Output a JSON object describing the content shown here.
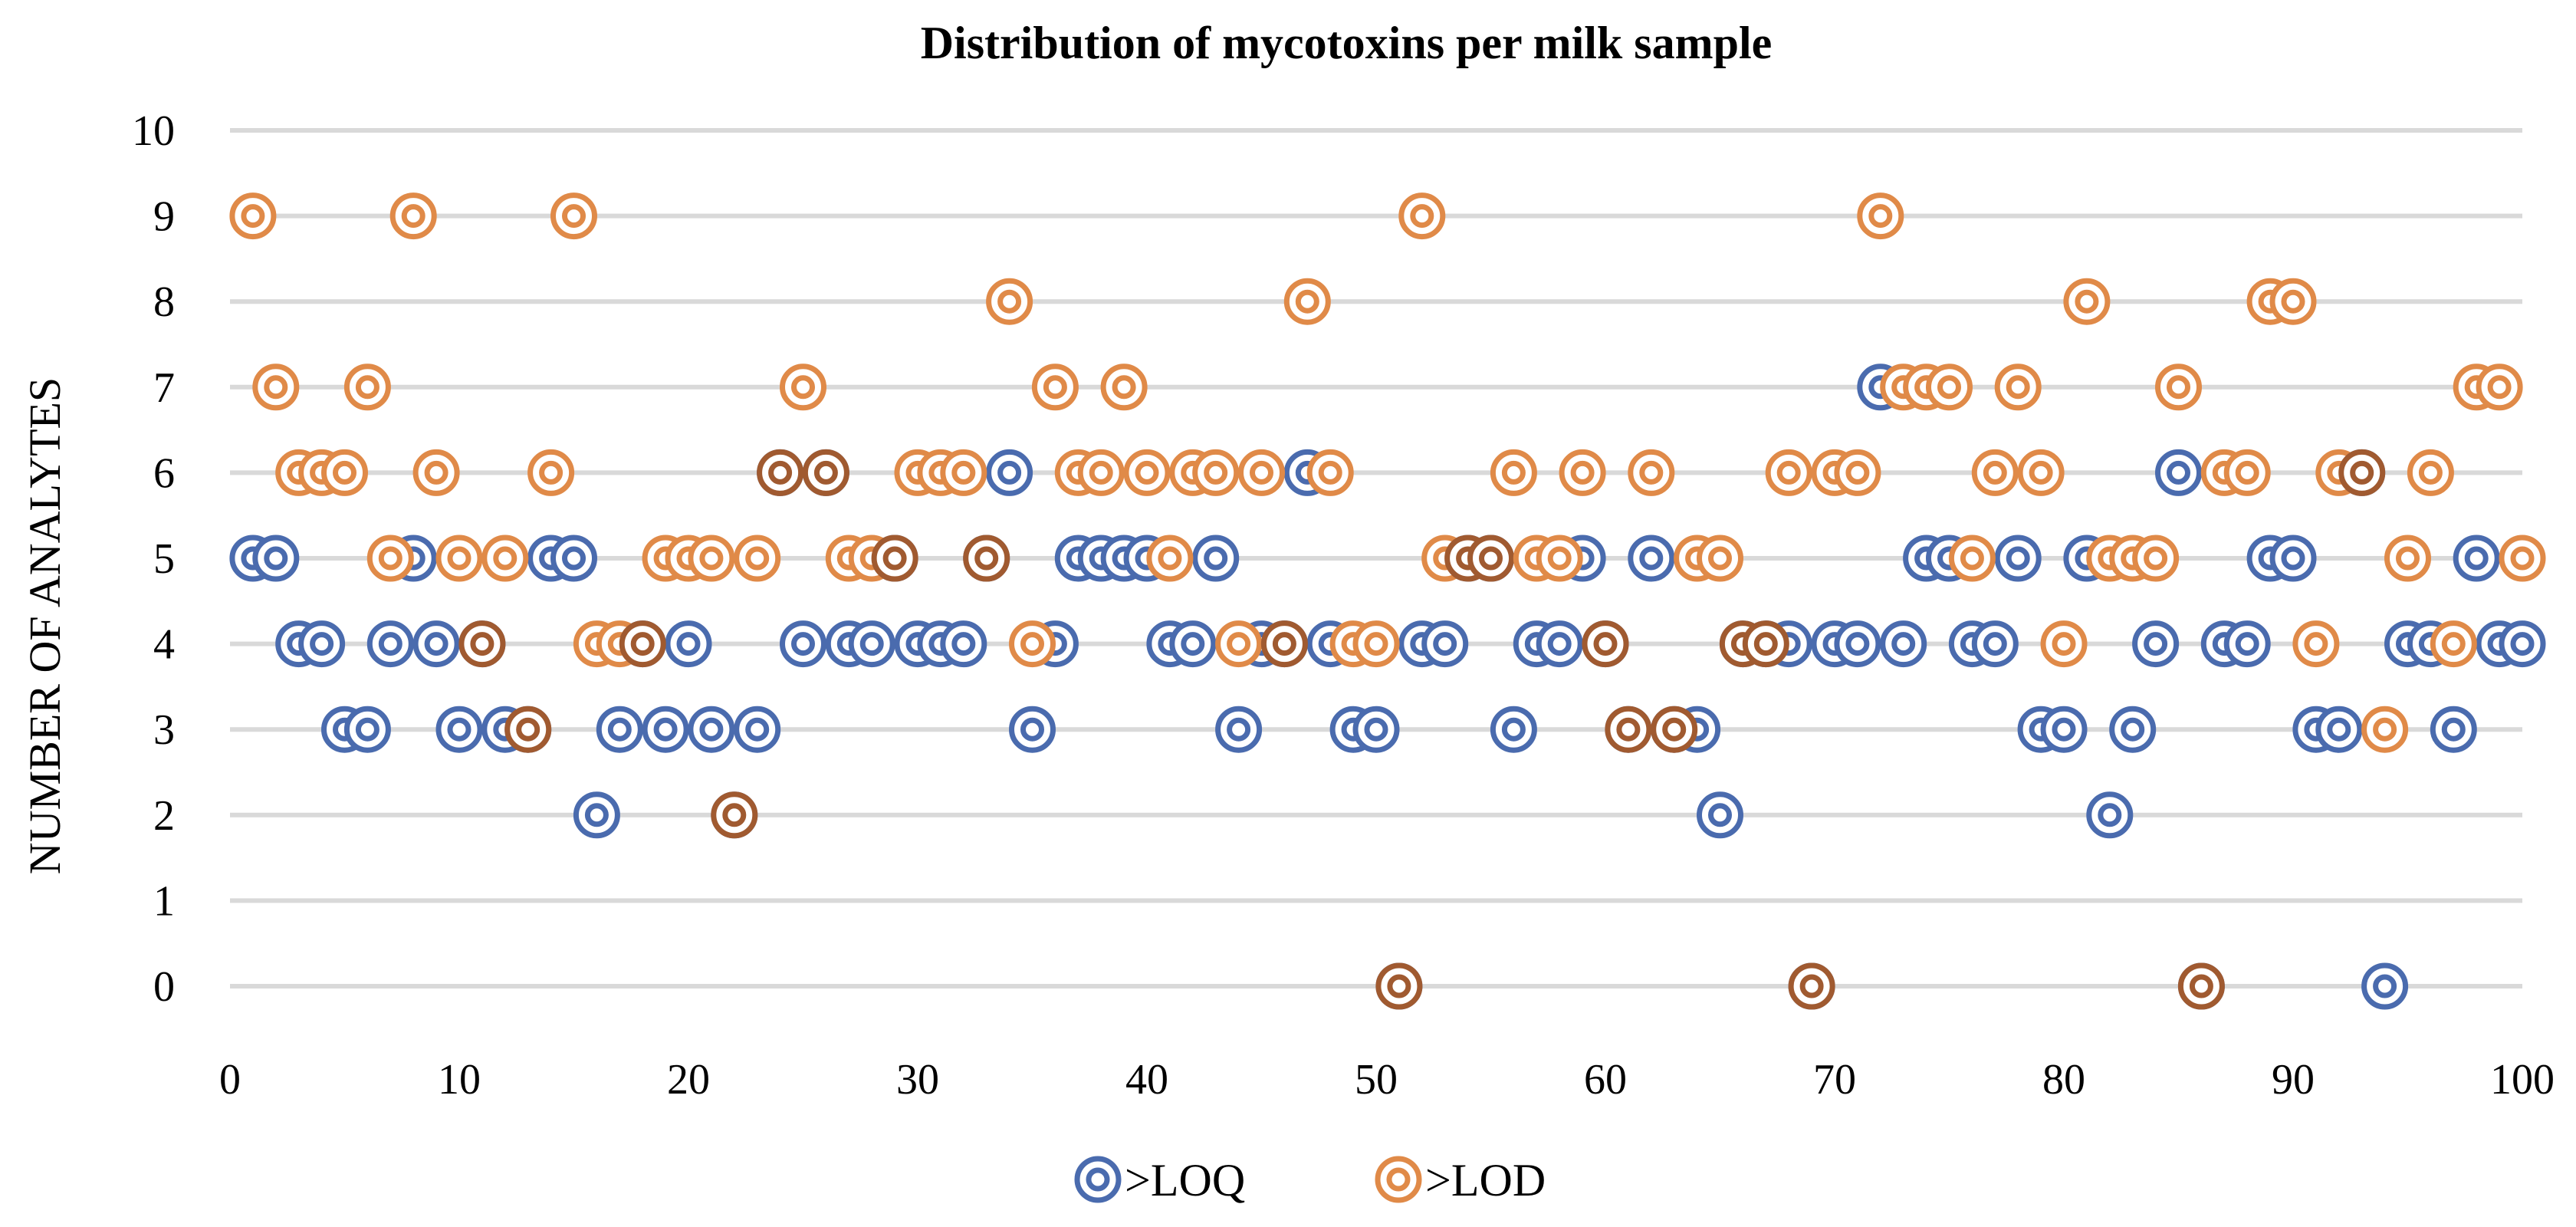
{
  "chart_data": {
    "type": "scatter",
    "title": "Distribution of mycotoxins per milk sample",
    "xlabel": "",
    "ylabel": "NUMBER OF ANALYTES",
    "xlim": [
      0,
      100
    ],
    "ylim": [
      0,
      10
    ],
    "x_ticks": [
      0,
      10,
      20,
      30,
      40,
      50,
      60,
      70,
      80,
      90,
      100
    ],
    "y_ticks": [
      0,
      1,
      2,
      3,
      4,
      5,
      6,
      7,
      8,
      9,
      10
    ],
    "grid": "horizontal",
    "legend_position": "bottom",
    "colors": {
      "loq": "#4A6BAE",
      "lod": "#E08A48",
      "overlap": "#A05A30"
    },
    "series": [
      {
        "name": ">LOQ",
        "points": [
          [
            1,
            5
          ],
          [
            2,
            5
          ],
          [
            3,
            4
          ],
          [
            4,
            4
          ],
          [
            5,
            3
          ],
          [
            6,
            3
          ],
          [
            7,
            4
          ],
          [
            8,
            5
          ],
          [
            9,
            4
          ],
          [
            10,
            3
          ],
          [
            11,
            4
          ],
          [
            12,
            3
          ],
          [
            13,
            3
          ],
          [
            14,
            5
          ],
          [
            15,
            5
          ],
          [
            16,
            2
          ],
          [
            17,
            3
          ],
          [
            18,
            4
          ],
          [
            19,
            3
          ],
          [
            20,
            4
          ],
          [
            21,
            3
          ],
          [
            22,
            2
          ],
          [
            23,
            3
          ],
          [
            24,
            6
          ],
          [
            25,
            4
          ],
          [
            26,
            6
          ],
          [
            27,
            4
          ],
          [
            28,
            4
          ],
          [
            29,
            5
          ],
          [
            30,
            4
          ],
          [
            31,
            4
          ],
          [
            32,
            4
          ],
          [
            33,
            5
          ],
          [
            34,
            6
          ],
          [
            35,
            3
          ],
          [
            36,
            4
          ],
          [
            37,
            5
          ],
          [
            38,
            5
          ],
          [
            39,
            5
          ],
          [
            40,
            5
          ],
          [
            41,
            4
          ],
          [
            42,
            4
          ],
          [
            43,
            5
          ],
          [
            44,
            3
          ],
          [
            45,
            4
          ],
          [
            46,
            4
          ],
          [
            47,
            6
          ],
          [
            48,
            4
          ],
          [
            49,
            3
          ],
          [
            50,
            3
          ],
          [
            51,
            0
          ],
          [
            52,
            4
          ],
          [
            53,
            4
          ],
          [
            54,
            5
          ],
          [
            55,
            5
          ],
          [
            56,
            3
          ],
          [
            57,
            4
          ],
          [
            58,
            4
          ],
          [
            59,
            5
          ],
          [
            60,
            4
          ],
          [
            61,
            3
          ],
          [
            62,
            5
          ],
          [
            63,
            3
          ],
          [
            64,
            3
          ],
          [
            65,
            2
          ],
          [
            66,
            4
          ],
          [
            67,
            4
          ],
          [
            68,
            4
          ],
          [
            69,
            0
          ],
          [
            70,
            4
          ],
          [
            71,
            4
          ],
          [
            72,
            7
          ],
          [
            73,
            4
          ],
          [
            74,
            5
          ],
          [
            75,
            5
          ],
          [
            76,
            4
          ],
          [
            77,
            4
          ],
          [
            78,
            5
          ],
          [
            79,
            3
          ],
          [
            80,
            3
          ],
          [
            81,
            5
          ],
          [
            82,
            2
          ],
          [
            83,
            3
          ],
          [
            84,
            4
          ],
          [
            85,
            6
          ],
          [
            86,
            0
          ],
          [
            87,
            4
          ],
          [
            88,
            4
          ],
          [
            89,
            5
          ],
          [
            90,
            5
          ],
          [
            91,
            3
          ],
          [
            92,
            3
          ],
          [
            93,
            6
          ],
          [
            94,
            0
          ],
          [
            95,
            4
          ],
          [
            96,
            4
          ],
          [
            97,
            3
          ],
          [
            98,
            5
          ],
          [
            99,
            4
          ],
          [
            100,
            4
          ]
        ]
      },
      {
        "name": ">LOD",
        "points": [
          [
            1,
            9
          ],
          [
            2,
            7
          ],
          [
            3,
            6
          ],
          [
            4,
            6
          ],
          [
            5,
            6
          ],
          [
            6,
            7
          ],
          [
            7,
            5
          ],
          [
            8,
            9
          ],
          [
            9,
            6
          ],
          [
            10,
            5
          ],
          [
            11,
            4
          ],
          [
            12,
            5
          ],
          [
            13,
            3
          ],
          [
            14,
            6
          ],
          [
            15,
            9
          ],
          [
            16,
            4
          ],
          [
            17,
            4
          ],
          [
            18,
            4
          ],
          [
            19,
            5
          ],
          [
            20,
            5
          ],
          [
            21,
            5
          ],
          [
            22,
            2
          ],
          [
            23,
            5
          ],
          [
            24,
            6
          ],
          [
            25,
            7
          ],
          [
            26,
            6
          ],
          [
            27,
            5
          ],
          [
            28,
            5
          ],
          [
            29,
            5
          ],
          [
            30,
            6
          ],
          [
            31,
            6
          ],
          [
            32,
            6
          ],
          [
            33,
            5
          ],
          [
            34,
            8
          ],
          [
            35,
            4
          ],
          [
            36,
            7
          ],
          [
            37,
            6
          ],
          [
            38,
            6
          ],
          [
            39,
            7
          ],
          [
            40,
            6
          ],
          [
            41,
            5
          ],
          [
            42,
            6
          ],
          [
            43,
            6
          ],
          [
            44,
            4
          ],
          [
            45,
            6
          ],
          [
            46,
            4
          ],
          [
            47,
            8
          ],
          [
            48,
            6
          ],
          [
            49,
            4
          ],
          [
            50,
            4
          ],
          [
            51,
            0
          ],
          [
            52,
            9
          ],
          [
            53,
            5
          ],
          [
            54,
            5
          ],
          [
            55,
            5
          ],
          [
            56,
            6
          ],
          [
            57,
            5
          ],
          [
            58,
            5
          ],
          [
            59,
            6
          ],
          [
            60,
            4
          ],
          [
            61,
            3
          ],
          [
            62,
            6
          ],
          [
            63,
            3
          ],
          [
            64,
            5
          ],
          [
            65,
            5
          ],
          [
            66,
            4
          ],
          [
            67,
            4
          ],
          [
            68,
            6
          ],
          [
            69,
            0
          ],
          [
            70,
            6
          ],
          [
            71,
            6
          ],
          [
            72,
            9
          ],
          [
            73,
            7
          ],
          [
            74,
            7
          ],
          [
            75,
            7
          ],
          [
            76,
            5
          ],
          [
            77,
            6
          ],
          [
            78,
            7
          ],
          [
            79,
            6
          ],
          [
            80,
            4
          ],
          [
            81,
            8
          ],
          [
            82,
            5
          ],
          [
            83,
            5
          ],
          [
            84,
            5
          ],
          [
            85,
            7
          ],
          [
            86,
            0
          ],
          [
            87,
            6
          ],
          [
            88,
            6
          ],
          [
            89,
            8
          ],
          [
            90,
            8
          ],
          [
            91,
            4
          ],
          [
            92,
            6
          ],
          [
            93,
            6
          ],
          [
            94,
            3
          ],
          [
            95,
            5
          ],
          [
            96,
            6
          ],
          [
            97,
            4
          ],
          [
            98,
            7
          ],
          [
            99,
            7
          ],
          [
            100,
            5
          ]
        ]
      }
    ]
  }
}
